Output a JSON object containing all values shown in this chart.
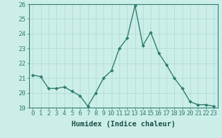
{
  "x": [
    0,
    1,
    2,
    3,
    4,
    5,
    6,
    7,
    8,
    9,
    10,
    11,
    12,
    13,
    14,
    15,
    16,
    17,
    18,
    19,
    20,
    21,
    22,
    23
  ],
  "y": [
    21.2,
    21.1,
    20.3,
    20.3,
    20.4,
    20.1,
    19.8,
    19.1,
    20.0,
    21.0,
    21.5,
    23.0,
    23.7,
    25.9,
    23.2,
    24.1,
    22.7,
    21.9,
    21.0,
    20.3,
    19.4,
    19.2,
    19.2,
    19.1
  ],
  "line_color": "#2e7d6e",
  "marker_color": "#2e7d6e",
  "bg_color": "#cceee8",
  "grid_color": "#aad8d0",
  "xlabel": "Humidex (Indice chaleur)",
  "xlim": [
    -0.5,
    23.5
  ],
  "ylim": [
    19,
    26
  ],
  "yticks": [
    19,
    20,
    21,
    22,
    23,
    24,
    25,
    26
  ],
  "xticks": [
    0,
    1,
    2,
    3,
    4,
    5,
    6,
    7,
    8,
    9,
    10,
    11,
    12,
    13,
    14,
    15,
    16,
    17,
    18,
    19,
    20,
    21,
    22,
    23
  ],
  "tick_label_color": "#1a5048",
  "axis_color": "#2e7d6e",
  "font_size": 6.5,
  "xlabel_fontsize": 7.5,
  "linewidth": 1.0,
  "markersize": 2.2
}
